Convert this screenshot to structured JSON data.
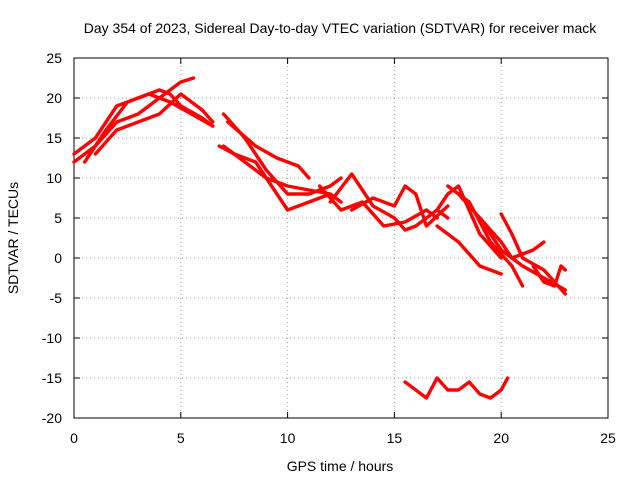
{
  "chart_data": {
    "type": "line",
    "title": "Day 354 of 2023, Sidereal Day-to-day VTEC variation (SDTVAR) for receiver mack",
    "xlabel": "GPS time / hours",
    "ylabel": "SDTVAR / TECUs",
    "xlim": [
      0,
      25
    ],
    "ylim": [
      -20,
      25
    ],
    "grid": true,
    "xticks": [
      0,
      5,
      10,
      15,
      20,
      25
    ],
    "yticks": [
      25,
      20,
      15,
      10,
      5,
      0,
      -5,
      -10,
      -15,
      -20
    ],
    "xtick_labels": [
      "0",
      "5",
      "10",
      "15",
      "20",
      "25"
    ],
    "ytick_labels": [
      "25",
      "20",
      "15",
      "10",
      "5",
      "0",
      "-5",
      "-10",
      "-15",
      "-20"
    ],
    "series": [
      {
        "name": "track-1",
        "color": "#ff0000",
        "points": [
          [
            0,
            12
          ],
          [
            1,
            14
          ],
          [
            2,
            17
          ],
          [
            3,
            18
          ],
          [
            4,
            20
          ],
          [
            5,
            22
          ],
          [
            5.6,
            22.5
          ]
        ]
      },
      {
        "name": "track-2",
        "color": "#ff0000",
        "points": [
          [
            0,
            13
          ],
          [
            1,
            15
          ],
          [
            2,
            19
          ],
          [
            3,
            20
          ],
          [
            4,
            21
          ],
          [
            4.5,
            20.5
          ],
          [
            5,
            19
          ],
          [
            6,
            17.5
          ],
          [
            6.5,
            16.5
          ]
        ]
      },
      {
        "name": "track-3",
        "color": "#ff0000",
        "points": [
          [
            0.5,
            12
          ],
          [
            1.5,
            16
          ],
          [
            2.5,
            19.5
          ],
          [
            3.5,
            20.5
          ],
          [
            4.5,
            19.5
          ],
          [
            5.5,
            18
          ],
          [
            6.5,
            16.5
          ]
        ]
      },
      {
        "name": "track-4",
        "color": "#ff0000",
        "points": [
          [
            1,
            13
          ],
          [
            2,
            16
          ],
          [
            3,
            17
          ],
          [
            4,
            18
          ],
          [
            5,
            20.5
          ],
          [
            6,
            18.5
          ],
          [
            6.5,
            17
          ]
        ]
      },
      {
        "name": "track-5",
        "color": "#ff0000",
        "points": [
          [
            7,
            14
          ],
          [
            8,
            12
          ],
          [
            9,
            10
          ],
          [
            10,
            9
          ],
          [
            11,
            8.5
          ],
          [
            12,
            8
          ],
          [
            12.5,
            7
          ]
        ]
      },
      {
        "name": "track-6",
        "color": "#ff0000",
        "points": [
          [
            7,
            18
          ],
          [
            8,
            15
          ],
          [
            9,
            11
          ],
          [
            10,
            8
          ],
          [
            11,
            8
          ],
          [
            12,
            9
          ],
          [
            12.5,
            10
          ]
        ]
      },
      {
        "name": "track-7",
        "color": "#ff0000",
        "points": [
          [
            6.8,
            14
          ],
          [
            7.5,
            13
          ],
          [
            8.5,
            12
          ],
          [
            9.5,
            8
          ],
          [
            10,
            6
          ],
          [
            11,
            7
          ],
          [
            12,
            8
          ]
        ]
      },
      {
        "name": "track-8",
        "color": "#ff0000",
        "points": [
          [
            7.2,
            17
          ],
          [
            8.5,
            14
          ],
          [
            9.5,
            12.5
          ],
          [
            10.5,
            11.5
          ],
          [
            11,
            10
          ]
        ]
      },
      {
        "name": "track-9",
        "color": "#ff0000",
        "points": [
          [
            12,
            7
          ],
          [
            13,
            10.5
          ],
          [
            14,
            6.5
          ],
          [
            15,
            5
          ],
          [
            15.5,
            3.5
          ],
          [
            16,
            4
          ],
          [
            17,
            6
          ],
          [
            17.5,
            5
          ]
        ]
      },
      {
        "name": "track-10",
        "color": "#ff0000",
        "points": [
          [
            11.5,
            9
          ],
          [
            12.5,
            6
          ],
          [
            13.5,
            7
          ],
          [
            14.5,
            4
          ],
          [
            15.5,
            4.5
          ],
          [
            16.5,
            6
          ],
          [
            17,
            5
          ]
        ]
      },
      {
        "name": "track-11",
        "color": "#ff0000",
        "points": [
          [
            13,
            6
          ],
          [
            14,
            7.5
          ],
          [
            15,
            6.5
          ],
          [
            15.5,
            9
          ],
          [
            16,
            8
          ],
          [
            16.5,
            4
          ],
          [
            17.5,
            6.5
          ]
        ]
      },
      {
        "name": "track-12",
        "color": "#ff0000",
        "points": [
          [
            17,
            6
          ],
          [
            17.5,
            8
          ],
          [
            18,
            9
          ],
          [
            19,
            3
          ],
          [
            20,
            0
          ]
        ]
      },
      {
        "name": "track-13",
        "color": "#ff0000",
        "points": [
          [
            17.5,
            9
          ],
          [
            18.5,
            7
          ],
          [
            19.5,
            2
          ],
          [
            20.5,
            -1
          ],
          [
            21,
            -3.5
          ]
        ]
      },
      {
        "name": "track-14",
        "color": "#ff0000",
        "points": [
          [
            17,
            4
          ],
          [
            18,
            2
          ],
          [
            19,
            -1
          ],
          [
            20,
            -2
          ]
        ]
      },
      {
        "name": "track-15",
        "color": "#ff0000",
        "points": [
          [
            18,
            8
          ],
          [
            19,
            5
          ],
          [
            20,
            1
          ],
          [
            21,
            -1
          ],
          [
            22,
            -2.5
          ],
          [
            23,
            -4
          ]
        ]
      },
      {
        "name": "track-16",
        "color": "#ff0000",
        "points": [
          [
            19,
            5
          ],
          [
            20,
            2
          ],
          [
            20.5,
            0
          ],
          [
            21.5,
            1
          ],
          [
            22,
            2
          ]
        ]
      },
      {
        "name": "track-17",
        "color": "#ff0000",
        "points": [
          [
            20,
            5.5
          ],
          [
            20.5,
            3
          ],
          [
            21,
            0
          ],
          [
            22,
            -1.5
          ],
          [
            22.5,
            -3
          ],
          [
            23,
            -4.5
          ]
        ]
      },
      {
        "name": "track-18",
        "color": "#ff0000",
        "points": [
          [
            21.5,
            -1
          ],
          [
            22,
            -3
          ],
          [
            22.5,
            -3.5
          ],
          [
            22.8,
            -1
          ],
          [
            23,
            -1.5
          ]
        ]
      },
      {
        "name": "track-19",
        "color": "#ff0000",
        "points": [
          [
            15.5,
            -15.5
          ],
          [
            16,
            -16.5
          ],
          [
            16.5,
            -17.5
          ],
          [
            17,
            -15
          ],
          [
            17.5,
            -16.5
          ],
          [
            18,
            -16.5
          ],
          [
            18.5,
            -15.5
          ],
          [
            19,
            -17
          ],
          [
            19.5,
            -17.5
          ],
          [
            20,
            -16.5
          ],
          [
            20.3,
            -15
          ]
        ]
      }
    ]
  }
}
